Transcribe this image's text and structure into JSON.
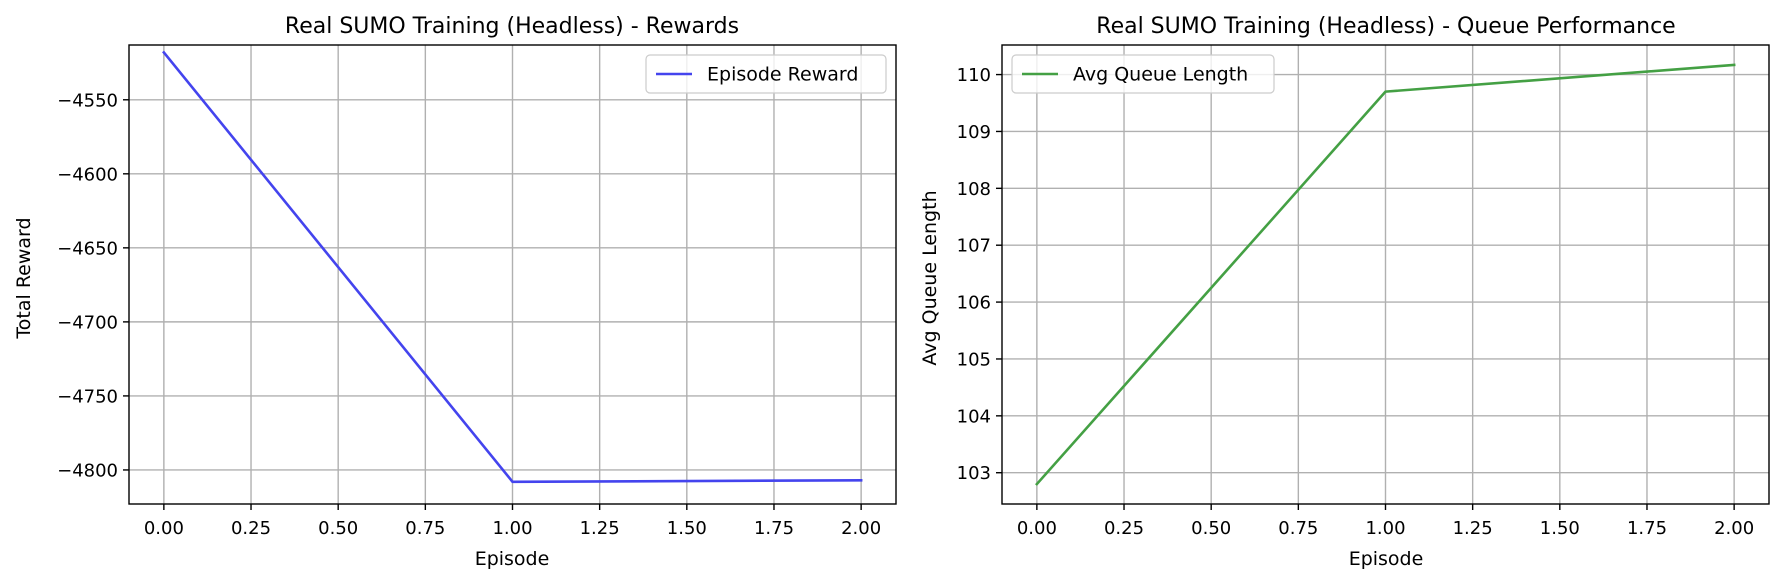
{
  "chart_data": [
    {
      "type": "line",
      "title": "Real SUMO Training (Headless) - Rewards",
      "xlabel": "Episode",
      "ylabel": "Total Reward",
      "x": [
        0,
        1,
        2
      ],
      "xlim": [
        -0.1,
        2.1
      ],
      "ylim": [
        -4823,
        -4513
      ],
      "xticks": [
        0.0,
        0.25,
        0.5,
        0.75,
        1.0,
        1.25,
        1.5,
        1.75,
        2.0
      ],
      "xtick_labels": [
        "0.00",
        "0.25",
        "0.50",
        "0.75",
        "1.00",
        "1.25",
        "1.50",
        "1.75",
        "2.00"
      ],
      "yticks": [
        -4800,
        -4750,
        -4700,
        -4650,
        -4600,
        -4550
      ],
      "ytick_labels": [
        "−4800",
        "−4750",
        "−4700",
        "−4650",
        "−4600",
        "−4550"
      ],
      "grid": true,
      "legend_position": "top-right",
      "series": [
        {
          "name": "Episode Reward",
          "color": "#4444ee",
          "values": [
            -4518,
            -4808,
            -4807
          ]
        }
      ]
    },
    {
      "type": "line",
      "title": "Real SUMO Training (Headless) - Queue Performance",
      "xlabel": "Episode",
      "ylabel": "Avg Queue Length",
      "x": [
        0,
        1,
        2
      ],
      "xlim": [
        -0.1,
        2.1
      ],
      "ylim": [
        102.45,
        110.52
      ],
      "xticks": [
        0.0,
        0.25,
        0.5,
        0.75,
        1.0,
        1.25,
        1.5,
        1.75,
        2.0
      ],
      "xtick_labels": [
        "0.00",
        "0.25",
        "0.50",
        "0.75",
        "1.00",
        "1.25",
        "1.50",
        "1.75",
        "2.00"
      ],
      "yticks": [
        103,
        104,
        105,
        106,
        107,
        108,
        109,
        110
      ],
      "ytick_labels": [
        "103",
        "104",
        "105",
        "106",
        "107",
        "108",
        "109",
        "110"
      ],
      "grid": true,
      "legend_position": "top-left",
      "series": [
        {
          "name": "Avg Queue Length",
          "color": "#44a044",
          "values": [
            102.8,
            109.7,
            110.17
          ]
        }
      ]
    }
  ]
}
